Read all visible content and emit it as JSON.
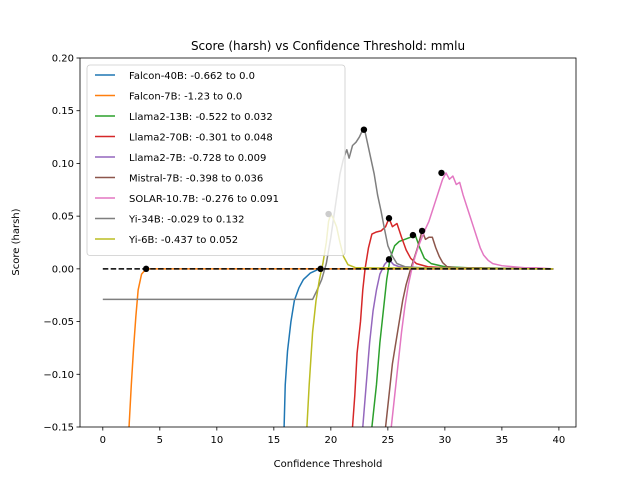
{
  "chart_data": {
    "type": "line",
    "title": "Score (harsh) vs Confidence Threshold: mmlu",
    "xlabel": "Confidence Threshold",
    "ylabel": "Score (harsh)",
    "xlim": [
      -2,
      41.5
    ],
    "ylim": [
      -0.15,
      0.2
    ],
    "xticks": [
      0,
      5,
      10,
      15,
      20,
      25,
      30,
      35,
      40
    ],
    "yticks": [
      -0.15,
      -0.1,
      -0.05,
      0.0,
      0.05,
      0.1,
      0.15,
      0.2
    ],
    "ytick_labels": [
      "−0.15",
      "−0.10",
      "−0.05",
      "0.00",
      "0.05",
      "0.10",
      "0.15",
      "0.20"
    ],
    "legend_position": "top-left",
    "series": [
      {
        "name": "Falcon-40B: -0.662 to 0.0",
        "color": "#1f77b4",
        "points": [
          [
            15.9,
            -0.15
          ],
          [
            16.0,
            -0.11
          ],
          [
            16.2,
            -0.078
          ],
          [
            16.5,
            -0.05
          ],
          [
            16.8,
            -0.03
          ],
          [
            17.2,
            -0.018
          ],
          [
            17.6,
            -0.01
          ],
          [
            18.2,
            -0.004
          ],
          [
            19.0,
            0.0
          ],
          [
            39.5,
            0.0
          ]
        ],
        "max_point": [
          19.1,
          0.0
        ]
      },
      {
        "name": "Falcon-7B: -1.23 to 0.0",
        "color": "#ff7f0e",
        "points": [
          [
            2.3,
            -0.15
          ],
          [
            2.5,
            -0.11
          ],
          [
            2.7,
            -0.075
          ],
          [
            2.9,
            -0.045
          ],
          [
            3.1,
            -0.02
          ],
          [
            3.4,
            -0.005
          ],
          [
            3.8,
            0.0
          ],
          [
            39.5,
            0.0
          ]
        ],
        "max_point": [
          3.8,
          0.0
        ]
      },
      {
        "name": "Llama2-13B: -0.522 to 0.032",
        "color": "#2ca02c",
        "points": [
          [
            23.6,
            -0.15
          ],
          [
            24.0,
            -0.11
          ],
          [
            24.3,
            -0.07
          ],
          [
            24.6,
            -0.04
          ],
          [
            24.9,
            -0.01
          ],
          [
            25.2,
            0.01
          ],
          [
            25.6,
            0.022
          ],
          [
            26.0,
            0.026
          ],
          [
            26.5,
            0.028
          ],
          [
            27.0,
            0.03
          ],
          [
            27.4,
            0.032
          ],
          [
            27.8,
            0.02
          ],
          [
            28.2,
            0.01
          ],
          [
            28.8,
            0.005
          ],
          [
            30,
            0.002
          ],
          [
            32,
            0.001
          ],
          [
            39.5,
            0.0
          ]
        ],
        "max_point": [
          27.2,
          0.032
        ]
      },
      {
        "name": "Llama2-70B: -0.301 to 0.048",
        "color": "#d62728",
        "points": [
          [
            21.9,
            -0.15
          ],
          [
            22.1,
            -0.12
          ],
          [
            22.3,
            -0.08
          ],
          [
            22.6,
            -0.05
          ],
          [
            22.8,
            -0.02
          ],
          [
            23.0,
            0.0
          ],
          [
            23.3,
            0.02
          ],
          [
            23.6,
            0.033
          ],
          [
            24.0,
            0.035
          ],
          [
            24.4,
            0.036
          ],
          [
            24.8,
            0.04
          ],
          [
            25.1,
            0.048
          ],
          [
            25.4,
            0.04
          ],
          [
            25.8,
            0.043
          ],
          [
            26.2,
            0.03
          ],
          [
            26.6,
            0.018
          ],
          [
            27.0,
            0.01
          ],
          [
            27.5,
            0.005
          ],
          [
            28.5,
            0.002
          ],
          [
            30,
            0.001
          ],
          [
            39.5,
            0.0
          ]
        ],
        "max_point": [
          25.1,
          0.048
        ]
      },
      {
        "name": "Llama2-7B: -0.728 to 0.009",
        "color": "#9467bd",
        "points": [
          [
            22.8,
            -0.15
          ],
          [
            23.1,
            -0.11
          ],
          [
            23.4,
            -0.07
          ],
          [
            23.7,
            -0.04
          ],
          [
            24.0,
            -0.02
          ],
          [
            24.3,
            -0.005
          ],
          [
            24.7,
            0.004
          ],
          [
            25.1,
            0.009
          ],
          [
            25.5,
            0.004
          ],
          [
            26.0,
            0.002
          ],
          [
            27,
            0.001
          ],
          [
            39.5,
            0.0
          ]
        ],
        "max_point": [
          25.1,
          0.009
        ]
      },
      {
        "name": "Mistral-7B: -0.398 to 0.036",
        "color": "#8c564b",
        "points": [
          [
            24.8,
            -0.15
          ],
          [
            25.1,
            -0.12
          ],
          [
            25.4,
            -0.09
          ],
          [
            25.7,
            -0.07
          ],
          [
            26.0,
            -0.05
          ],
          [
            26.3,
            -0.03
          ],
          [
            26.6,
            -0.015
          ],
          [
            27.0,
            0.0
          ],
          [
            27.3,
            0.01
          ],
          [
            27.6,
            0.02
          ],
          [
            28.0,
            0.036
          ],
          [
            28.3,
            0.028
          ],
          [
            28.6,
            0.03
          ],
          [
            28.9,
            0.03
          ],
          [
            29.2,
            0.02
          ],
          [
            29.5,
            0.012
          ],
          [
            29.8,
            0.006
          ],
          [
            30.2,
            0.002
          ],
          [
            31,
            0.001
          ],
          [
            39.5,
            0.0
          ]
        ],
        "max_point": [
          28.0,
          0.036
        ]
      },
      {
        "name": "SOLAR-10.7B: -0.276 to 0.091",
        "color": "#e377c2",
        "points": [
          [
            25.3,
            -0.15
          ],
          [
            25.6,
            -0.12
          ],
          [
            25.9,
            -0.09
          ],
          [
            26.2,
            -0.06
          ],
          [
            26.5,
            -0.035
          ],
          [
            26.8,
            -0.015
          ],
          [
            27.1,
            0.0
          ],
          [
            27.4,
            0.012
          ],
          [
            27.7,
            0.022
          ],
          [
            28.0,
            0.03
          ],
          [
            28.3,
            0.038
          ],
          [
            28.6,
            0.045
          ],
          [
            28.9,
            0.055
          ],
          [
            29.2,
            0.065
          ],
          [
            29.5,
            0.075
          ],
          [
            29.8,
            0.085
          ],
          [
            30.1,
            0.091
          ],
          [
            30.4,
            0.085
          ],
          [
            30.7,
            0.088
          ],
          [
            31.0,
            0.08
          ],
          [
            31.3,
            0.082
          ],
          [
            31.6,
            0.07
          ],
          [
            31.9,
            0.06
          ],
          [
            32.2,
            0.05
          ],
          [
            32.5,
            0.04
          ],
          [
            32.8,
            0.03
          ],
          [
            33.1,
            0.02
          ],
          [
            33.4,
            0.013
          ],
          [
            33.8,
            0.008
          ],
          [
            34.2,
            0.005
          ],
          [
            35,
            0.003
          ],
          [
            36,
            0.002
          ],
          [
            37,
            0.001
          ],
          [
            38,
            0.001
          ],
          [
            39.5,
            0.0
          ]
        ],
        "max_point": [
          29.7,
          0.091
        ]
      },
      {
        "name": "Yi-34B: -0.029 to 0.132",
        "color": "#7f7f7f",
        "points": [
          [
            0.0,
            -0.029
          ],
          [
            18.4,
            -0.029
          ],
          [
            18.8,
            -0.02
          ],
          [
            19.2,
            -0.01
          ],
          [
            19.6,
            0.005
          ],
          [
            20.0,
            0.03
          ],
          [
            20.4,
            0.06
          ],
          [
            20.8,
            0.09
          ],
          [
            21.1,
            0.104
          ],
          [
            21.4,
            0.113
          ],
          [
            21.6,
            0.105
          ],
          [
            21.9,
            0.117
          ],
          [
            22.2,
            0.12
          ],
          [
            22.5,
            0.125
          ],
          [
            22.8,
            0.132
          ],
          [
            23.0,
            0.13
          ],
          [
            23.2,
            0.12
          ],
          [
            23.5,
            0.105
          ],
          [
            23.8,
            0.09
          ],
          [
            24.1,
            0.07
          ],
          [
            24.4,
            0.055
          ],
          [
            24.7,
            0.038
          ],
          [
            25.0,
            0.022
          ],
          [
            25.4,
            0.012
          ],
          [
            25.8,
            0.005
          ],
          [
            26.5,
            0.002
          ],
          [
            28,
            0.001
          ],
          [
            39.5,
            0.0
          ]
        ],
        "max_point": [
          22.9,
          0.132
        ]
      },
      {
        "name": "Yi-6B: -0.437 to 0.052",
        "color": "#bcbd22",
        "points": [
          [
            17.9,
            -0.15
          ],
          [
            18.1,
            -0.11
          ],
          [
            18.4,
            -0.06
          ],
          [
            18.7,
            -0.03
          ],
          [
            19.0,
            -0.01
          ],
          [
            19.3,
            0.005
          ],
          [
            19.6,
            0.025
          ],
          [
            19.8,
            0.045
          ],
          [
            20.0,
            0.052
          ],
          [
            20.2,
            0.048
          ],
          [
            20.5,
            0.04
          ],
          [
            20.8,
            0.025
          ],
          [
            21.1,
            0.012
          ],
          [
            21.5,
            0.004
          ],
          [
            22.2,
            0.001
          ],
          [
            39.5,
            0.0
          ]
        ],
        "max_point": [
          19.8,
          0.052
        ]
      }
    ],
    "baseline": {
      "y": 0.0,
      "x_range": [
        0,
        39.5
      ],
      "color": "#000000",
      "style": "dashed"
    }
  }
}
